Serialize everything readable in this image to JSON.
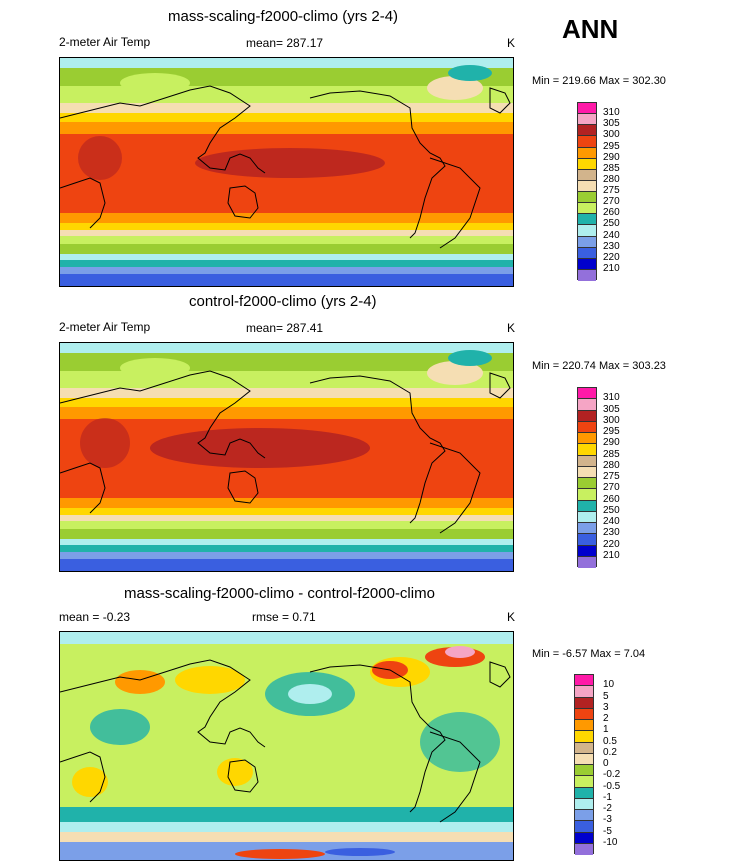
{
  "season": "ANN",
  "panels": [
    {
      "title": "mass-scaling-f2000-climo (yrs 2-4)",
      "left": "2-meter Air Temp",
      "center": "mean= 287.17",
      "unit": "K",
      "minmax": "Min = 219.66 Max = 302.30"
    },
    {
      "title": "control-f2000-climo (yrs 2-4)",
      "left": "2-meter Air Temp",
      "center": "mean= 287.41",
      "unit": "K",
      "minmax": "Min = 220.74 Max = 303.23"
    },
    {
      "title": "mass-scaling-f2000-climo - control-f2000-climo",
      "left": "mean =  -0.23",
      "center": "rmse =   0.71",
      "unit": "K",
      "minmax": "Min =  -6.57 Max =   7.04"
    }
  ],
  "legend_abs": {
    "labels": [
      "310",
      "305",
      "300",
      "295",
      "290",
      "285",
      "280",
      "275",
      "270",
      "260",
      "250",
      "240",
      "230",
      "220",
      "210"
    ],
    "colors": [
      "#ff1aa8",
      "#f5a5c5",
      "#b22222",
      "#ee4411",
      "#ff9900",
      "#ffd700",
      "#d2b48c",
      "#f5deb3",
      "#9acd32",
      "#c8f060",
      "#20b2aa",
      "#afeeee",
      "#7b9fe8",
      "#3a5fe0",
      "#0000cd",
      "#9370db"
    ]
  },
  "legend_diff": {
    "labels": [
      "10",
      "5",
      "3",
      "2",
      "1",
      "0.5",
      "0.2",
      "0",
      "-0.2",
      "-0.5",
      "-1",
      "-2",
      "-3",
      "-5",
      "-10"
    ],
    "colors": [
      "#ff1aa8",
      "#f5a5c5",
      "#b22222",
      "#ee4411",
      "#ff9900",
      "#ffd700",
      "#d2b48c",
      "#f5deb3",
      "#9acd32",
      "#c8f060",
      "#20b2aa",
      "#afeeee",
      "#7b9fe8",
      "#3a5fe0",
      "#0000cd",
      "#9370db"
    ]
  }
}
